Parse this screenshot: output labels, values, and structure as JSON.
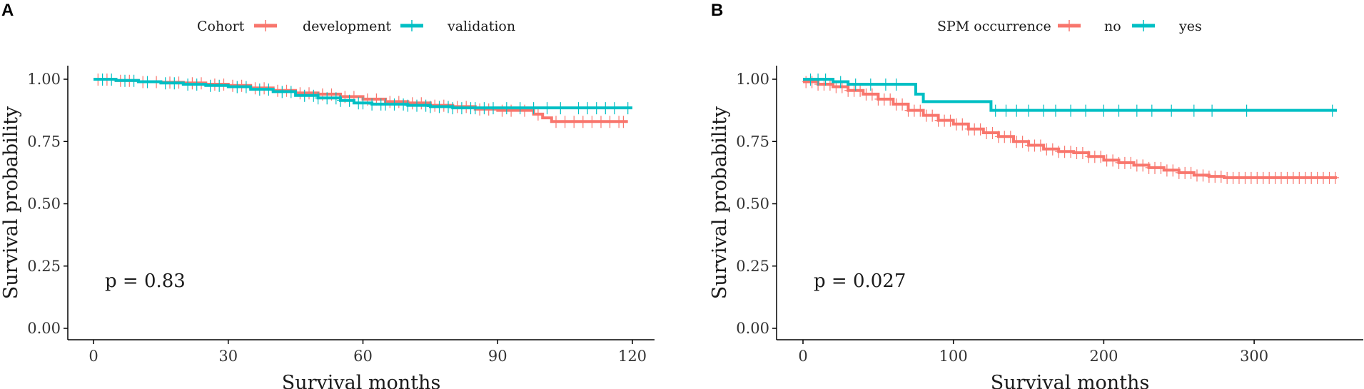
{
  "chart_data": [
    {
      "panel_label": "A",
      "type": "line",
      "subtype": "kaplan-meier",
      "title": "",
      "xlabel": "Survival months",
      "ylabel": "Survival probability",
      "xlim": [
        0,
        120
      ],
      "ylim": [
        0,
        1
      ],
      "xticks": [
        0,
        30,
        60,
        90,
        120
      ],
      "xtick_labels": [
        "0",
        "30",
        "60",
        "90",
        "120"
      ],
      "yticks": [
        0,
        0.25,
        0.5,
        0.75,
        1
      ],
      "ytick_labels": [
        "0.00",
        "0.25",
        "0.50",
        "0.75",
        "1.00"
      ],
      "legend_title": "Cohort",
      "annotation": "p = 0.83",
      "series": [
        {
          "name": "development",
          "color": "#F8766D",
          "x": [
            0,
            5,
            10,
            15,
            20,
            25,
            30,
            35,
            40,
            45,
            50,
            55,
            60,
            65,
            70,
            75,
            80,
            85,
            90,
            95,
            98,
            100,
            102,
            119
          ],
          "y": [
            1.0,
            0.995,
            0.99,
            0.988,
            0.985,
            0.98,
            0.975,
            0.965,
            0.955,
            0.945,
            0.94,
            0.93,
            0.92,
            0.91,
            0.905,
            0.895,
            0.89,
            0.88,
            0.875,
            0.875,
            0.86,
            0.845,
            0.83,
            0.83
          ],
          "censor_x": [
            1,
            3,
            6,
            8,
            11,
            14,
            17,
            19,
            22,
            24,
            27,
            29,
            31,
            33,
            36,
            38,
            41,
            43,
            46,
            48,
            51,
            53,
            56,
            58,
            61,
            63,
            66,
            68,
            71,
            73,
            76,
            78,
            81,
            83,
            86,
            88,
            91,
            93,
            96,
            99,
            103,
            105,
            107,
            109,
            111,
            113,
            115,
            117,
            118
          ]
        },
        {
          "name": "validation",
          "color": "#00BFC4",
          "x": [
            0,
            5,
            10,
            15,
            20,
            25,
            30,
            35,
            40,
            45,
            50,
            55,
            58,
            62,
            65,
            70,
            75,
            80,
            85,
            120
          ],
          "y": [
            1.0,
            0.995,
            0.99,
            0.985,
            0.98,
            0.975,
            0.97,
            0.96,
            0.95,
            0.935,
            0.925,
            0.915,
            0.905,
            0.9,
            0.9,
            0.895,
            0.89,
            0.885,
            0.885,
            0.885
          ],
          "censor_x": [
            2,
            4,
            7,
            9,
            12,
            16,
            18,
            21,
            23,
            26,
            28,
            32,
            34,
            37,
            39,
            42,
            44,
            47,
            49,
            50,
            52,
            54,
            55,
            57,
            59,
            60,
            62,
            64,
            65,
            67,
            69,
            70,
            72,
            74,
            75,
            77,
            79,
            80,
            82,
            84,
            85,
            87,
            89,
            92,
            95,
            98,
            101,
            104,
            108,
            110,
            112,
            114,
            116,
            119
          ]
        }
      ]
    },
    {
      "panel_label": "B",
      "type": "line",
      "subtype": "kaplan-meier",
      "title": "",
      "xlabel": "Survival months",
      "ylabel": "Survival probability",
      "xlim": [
        0,
        355
      ],
      "ylim": [
        0,
        1
      ],
      "xticks": [
        0,
        100,
        200,
        300
      ],
      "xtick_labels": [
        "0",
        "100",
        "200",
        "300"
      ],
      "yticks": [
        0,
        0.25,
        0.5,
        0.75,
        1
      ],
      "ytick_labels": [
        "0.00",
        "0.25",
        "0.50",
        "0.75",
        "1.00"
      ],
      "legend_title": "SPM occurrence",
      "annotation": "p = 0.027",
      "series": [
        {
          "name": "no",
          "color": "#F8766D",
          "x": [
            0,
            10,
            20,
            30,
            40,
            50,
            60,
            70,
            80,
            90,
            100,
            110,
            120,
            130,
            140,
            150,
            160,
            170,
            180,
            190,
            200,
            210,
            220,
            230,
            240,
            250,
            260,
            270,
            280,
            290,
            300,
            310,
            320,
            330,
            340,
            355
          ],
          "y": [
            0.99,
            0.98,
            0.97,
            0.955,
            0.94,
            0.92,
            0.9,
            0.875,
            0.855,
            0.835,
            0.82,
            0.8,
            0.785,
            0.77,
            0.75,
            0.735,
            0.72,
            0.71,
            0.705,
            0.69,
            0.675,
            0.665,
            0.655,
            0.645,
            0.635,
            0.625,
            0.615,
            0.61,
            0.605,
            0.605,
            0.605,
            0.605,
            0.605,
            0.605,
            0.605,
            0.605
          ],
          "censor_x": [
            2,
            6,
            10,
            14,
            18,
            22,
            26,
            30,
            34,
            38,
            42,
            46,
            50,
            54,
            58,
            62,
            66,
            70,
            74,
            78,
            82,
            86,
            90,
            94,
            98,
            102,
            106,
            110,
            114,
            118,
            122,
            126,
            130,
            134,
            138,
            142,
            146,
            150,
            154,
            158,
            162,
            166,
            170,
            174,
            178,
            182,
            186,
            190,
            194,
            198,
            202,
            206,
            210,
            214,
            218,
            222,
            226,
            230,
            234,
            238,
            242,
            246,
            250,
            254,
            258,
            262,
            266,
            270,
            274,
            278,
            282,
            286,
            290,
            294,
            298,
            302,
            306,
            310,
            314,
            318,
            322,
            326,
            330,
            334,
            338,
            342,
            346,
            350,
            354
          ]
        },
        {
          "name": "yes",
          "color": "#00BFC4",
          "x": [
            0,
            20,
            30,
            65,
            75,
            80,
            90,
            125,
            355
          ],
          "y": [
            1.0,
            0.99,
            0.98,
            0.98,
            0.94,
            0.91,
            0.91,
            0.875,
            0.875
          ],
          "censor_x": [
            5,
            10,
            15,
            25,
            35,
            45,
            55,
            62,
            128,
            135,
            142,
            150,
            160,
            168,
            178,
            188,
            200,
            210,
            222,
            232,
            245,
            260,
            272,
            295,
            352
          ]
        }
      ]
    }
  ]
}
